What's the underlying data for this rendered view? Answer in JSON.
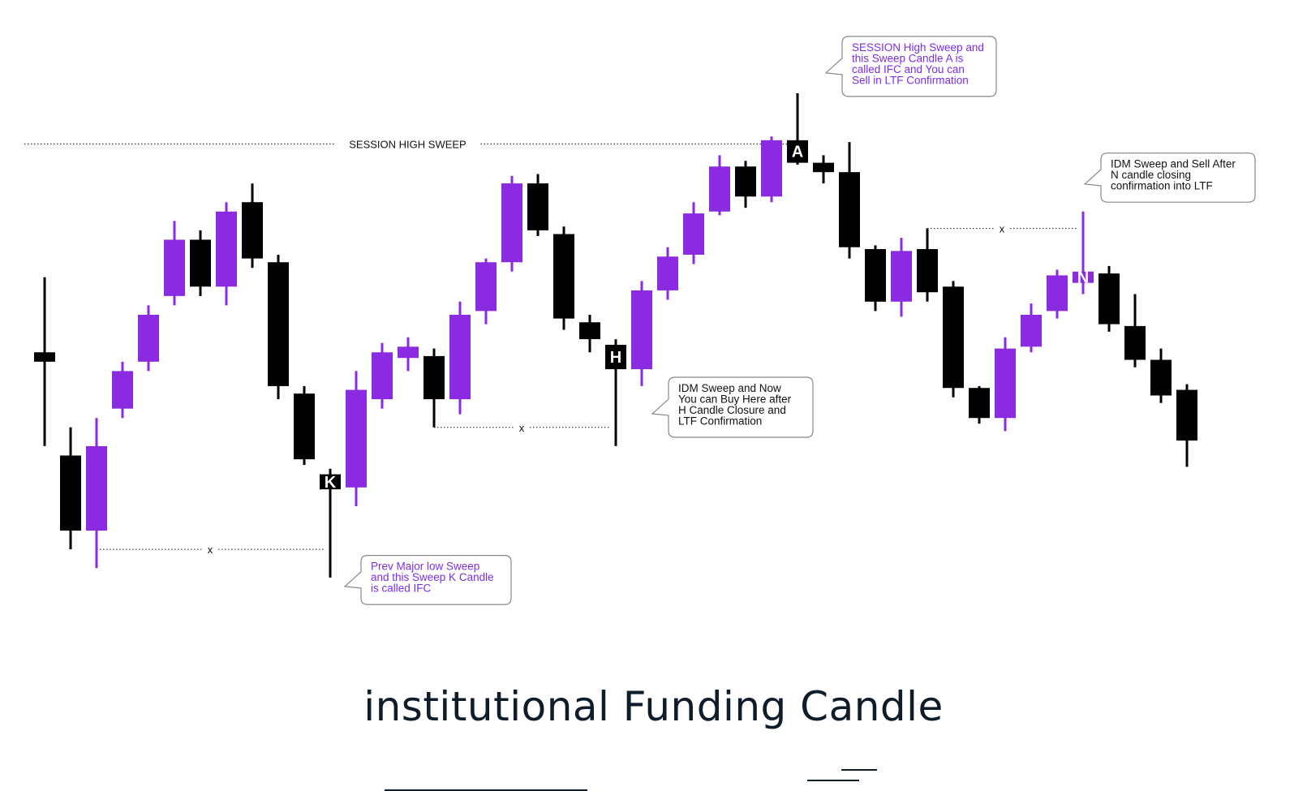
{
  "chart_data": {
    "type": "candlestick",
    "title": "",
    "colors": {
      "bullish": "#8a2be2",
      "bearish": "#000000"
    },
    "candles": [
      {
        "o": 530,
        "h": 570,
        "l": 480,
        "c": 525,
        "dir": "bear"
      },
      {
        "o": 475,
        "h": 490,
        "l": 425,
        "c": 435,
        "dir": "bear"
      },
      {
        "o": 435,
        "h": 495,
        "l": 415,
        "c": 480,
        "dir": "bull"
      },
      {
        "o": 500,
        "h": 525,
        "l": 495,
        "c": 520,
        "dir": "bull"
      },
      {
        "o": 525,
        "h": 555,
        "l": 520,
        "c": 550,
        "dir": "bull"
      },
      {
        "o": 560,
        "h": 600,
        "l": 555,
        "c": 590,
        "dir": "bull"
      },
      {
        "o": 590,
        "h": 595,
        "l": 560,
        "c": 565,
        "dir": "bear"
      },
      {
        "o": 565,
        "h": 610,
        "l": 555,
        "c": 605,
        "dir": "bull"
      },
      {
        "o": 610,
        "h": 620,
        "l": 575,
        "c": 580,
        "dir": "bear"
      },
      {
        "o": 578,
        "h": 582,
        "l": 505,
        "c": 512,
        "dir": "bear"
      },
      {
        "o": 508,
        "h": 512,
        "l": 470,
        "c": 473,
        "dir": "bear"
      },
      {
        "o": 465,
        "h": 468,
        "l": 410,
        "c": 457,
        "dir": "bear",
        "label": "K"
      },
      {
        "o": 458,
        "h": 520,
        "l": 448,
        "c": 510,
        "dir": "bull"
      },
      {
        "o": 505,
        "h": 535,
        "l": 500,
        "c": 530,
        "dir": "bull"
      },
      {
        "o": 527,
        "h": 538,
        "l": 520,
        "c": 533,
        "dir": "bull"
      },
      {
        "o": 528,
        "h": 532,
        "l": 490,
        "c": 505,
        "dir": "bear"
      },
      {
        "o": 505,
        "h": 557,
        "l": 497,
        "c": 550,
        "dir": "bull"
      },
      {
        "o": 552,
        "h": 580,
        "l": 545,
        "c": 578,
        "dir": "bull"
      },
      {
        "o": 578,
        "h": 624,
        "l": 573,
        "c": 620,
        "dir": "bull"
      },
      {
        "o": 620,
        "h": 625,
        "l": 592,
        "c": 595,
        "dir": "bear"
      },
      {
        "o": 593,
        "h": 597,
        "l": 542,
        "c": 548,
        "dir": "bear"
      },
      {
        "o": 546,
        "h": 550,
        "l": 530,
        "c": 537,
        "dir": "bear"
      },
      {
        "o": 534,
        "h": 537,
        "l": 480,
        "c": 521,
        "dir": "bear",
        "label": "H"
      },
      {
        "o": 521,
        "h": 568,
        "l": 512,
        "c": 563,
        "dir": "bull"
      },
      {
        "o": 563,
        "h": 586,
        "l": 558,
        "c": 581,
        "dir": "bull"
      },
      {
        "o": 582,
        "h": 610,
        "l": 577,
        "c": 604,
        "dir": "bull"
      },
      {
        "o": 605,
        "h": 635,
        "l": 603,
        "c": 629,
        "dir": "bull"
      },
      {
        "o": 629,
        "h": 632,
        "l": 607,
        "c": 613,
        "dir": "bear"
      },
      {
        "o": 613,
        "h": 645,
        "l": 610,
        "c": 643,
        "dir": "bull"
      },
      {
        "o": 643,
        "h": 668,
        "l": 630,
        "c": 631,
        "dir": "bear",
        "label": "A"
      },
      {
        "o": 631,
        "h": 635,
        "l": 620,
        "c": 626,
        "dir": "bear"
      },
      {
        "o": 626,
        "h": 642,
        "l": 580,
        "c": 586,
        "dir": "bear"
      },
      {
        "o": 585,
        "h": 587,
        "l": 552,
        "c": 557,
        "dir": "bear"
      },
      {
        "o": 557,
        "h": 591,
        "l": 549,
        "c": 584,
        "dir": "bull"
      },
      {
        "o": 585,
        "h": 596,
        "l": 557,
        "c": 562,
        "dir": "bear"
      },
      {
        "o": 565,
        "h": 568,
        "l": 506,
        "c": 511,
        "dir": "bear"
      },
      {
        "o": 511,
        "h": 512,
        "l": 492,
        "c": 495,
        "dir": "bear"
      },
      {
        "o": 495,
        "h": 538,
        "l": 488,
        "c": 532,
        "dir": "bull"
      },
      {
        "o": 533,
        "h": 556,
        "l": 530,
        "c": 550,
        "dir": "bull"
      },
      {
        "o": 552,
        "h": 574,
        "l": 548,
        "c": 571,
        "dir": "bull"
      },
      {
        "o": 567,
        "h": 605,
        "l": 561,
        "c": 573,
        "dir": "bull",
        "label": "N"
      },
      {
        "o": 572,
        "h": 576,
        "l": 541,
        "c": 545,
        "dir": "bear"
      },
      {
        "o": 544,
        "h": 561,
        "l": 522,
        "c": 526,
        "dir": "bear"
      },
      {
        "o": 526,
        "h": 532,
        "l": 503,
        "c": 507,
        "dir": "bear"
      },
      {
        "o": 510,
        "h": 513,
        "l": 469,
        "c": 483,
        "dir": "bear"
      }
    ],
    "levels": [
      {
        "name": "session-high-level",
        "value": 641,
        "from": 0,
        "to": 29,
        "label": "SESSION  HIGH  SWEEP"
      },
      {
        "name": "prev-major-low-level",
        "value": 425,
        "from": 2,
        "to": 11,
        "label": "x"
      },
      {
        "name": "idm-low-level",
        "value": 490,
        "from": 15,
        "to": 22,
        "label": "x"
      },
      {
        "name": "idm-high-level",
        "value": 596,
        "from": 34,
        "to": 40,
        "label": "x"
      }
    ],
    "annotations": [
      {
        "name": "callout-session-high",
        "candle": 29,
        "side": "left-pointer",
        "color": "#7b2ee8",
        "lines": [
          "SESSION High Sweep and",
          "this Sweep Candle A  is",
          "called IFC and You can",
          "Sell in LTF Confirmation"
        ]
      },
      {
        "name": "callout-idm-sell",
        "candle": 40,
        "side": "left-pointer",
        "color": "#111111",
        "lines": [
          "IDM Sweep and Sell After",
          "N candle closing",
          "confirmation into LTF"
        ]
      },
      {
        "name": "callout-idm-buy",
        "candle": 22,
        "side": "left-pointer",
        "color": "#111111",
        "lines": [
          "IDM Sweep  and Now",
          "You can Buy Here after",
          "H Candle Closure and",
          "LTF Confirmation"
        ]
      },
      {
        "name": "callout-prev-low",
        "candle": 11,
        "side": "left-pointer",
        "color": "#7b2ee8",
        "lines": [
          "Prev Major low Sweep",
          "and this Sweep K Candle",
          "is called IFC"
        ]
      }
    ]
  },
  "page": {
    "title": "institutional Funding Candle"
  }
}
